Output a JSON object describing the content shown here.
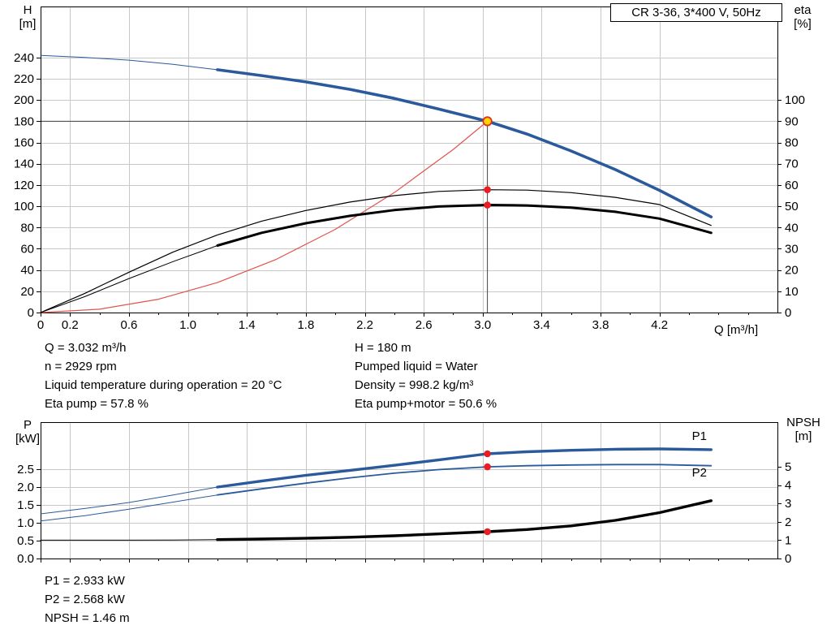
{
  "title_box": "CR 3-36, 3*400 V, 50Hz",
  "colors": {
    "curve_blue": "#2A5A9C",
    "curve_black": "#000000",
    "system_red": "#E0544C",
    "red_dot": "#EC1C24",
    "duty_fill": "#FFD400",
    "duty_ring": "#E03020",
    "grid": "#C8C8C8",
    "border": "#000000",
    "crosshair": "#404040",
    "background": "#FFFFFF"
  },
  "axes_text": {
    "top_left_title": "H",
    "top_left_unit": "[m]",
    "top_right_title": "eta",
    "top_right_unit": "[%]",
    "top_x_label": "Q [m³/h]",
    "bottom_left_title": "P",
    "bottom_left_unit": "[kW]",
    "bottom_right_title": "NPSH",
    "bottom_right_unit": "[m]"
  },
  "info": {
    "left": [
      "Q = 3.032 m³/h",
      "n = 2929 rpm",
      "Liquid temperature during operation = 20 °C",
      "Eta pump = 57.8 %"
    ],
    "right": [
      "H = 180 m",
      "Pumped liquid = Water",
      "Density = 998.2 kg/m³",
      "Eta pump+motor = 50.6 %"
    ],
    "bottom": [
      "P1 = 2.933 kW",
      "P2 = 2.568 kW",
      "NPSH = 1.46 m"
    ]
  },
  "chart_data": [
    {
      "type": "line",
      "name": "hq-eta-chart",
      "title": "CR 3-36, 3*400 V, 50Hz",
      "xlabel": "Q [m³/h]",
      "ylabel_left": "H [m]",
      "ylabel_right": "eta [%]",
      "xlim": [
        0,
        5.0
      ],
      "ylim_left": [
        0,
        288
      ],
      "ylim_right": [
        0,
        144
      ],
      "grid": true,
      "x_ticks": {
        "values": [
          0,
          0.2,
          0.6,
          1.0,
          1.4,
          1.8,
          2.2,
          2.6,
          3.0,
          3.4,
          3.8,
          4.2
        ],
        "labels": [
          "0",
          "0.2",
          "0.6",
          "1.0",
          "1.4",
          "1.8",
          "2.2",
          "2.6",
          "3.0",
          "3.4",
          "3.8",
          "4.2"
        ],
        "minor_step": 0.2,
        "show_labels": true
      },
      "y_ticks_left": {
        "values": [
          0,
          20,
          40,
          60,
          80,
          100,
          120,
          140,
          160,
          180,
          200,
          220,
          240
        ],
        "labels": [
          "0",
          "20",
          "40",
          "60",
          "80",
          "100",
          "120",
          "140",
          "160",
          "180",
          "200",
          "220",
          "240"
        ]
      },
      "y_ticks_right": {
        "values": [
          0,
          10,
          20,
          30,
          40,
          50,
          60,
          70,
          80,
          90,
          100
        ],
        "labels": [
          "0",
          "10",
          "20",
          "30",
          "40",
          "50",
          "60",
          "70",
          "80",
          "90",
          "100"
        ]
      },
      "duty_point": {
        "q": 3.032,
        "h": 180
      },
      "series": [
        {
          "name": "system-curve",
          "axis": "left",
          "color": "#E0544C",
          "width": 1.2,
          "x": [
            0,
            0.4,
            0.8,
            1.2,
            1.6,
            2.0,
            2.4,
            2.8,
            3.032
          ],
          "y": [
            0,
            3.1,
            12.5,
            28.2,
            50.1,
            78.3,
            112.8,
            153.5,
            180
          ]
        },
        {
          "name": "eta-pump",
          "axis": "right",
          "color": "#000000",
          "width": 1.2,
          "x": [
            0,
            0.3,
            0.6,
            0.9,
            1.2,
            1.5,
            1.8,
            2.1,
            2.4,
            2.7,
            3.032,
            3.3,
            3.6,
            3.9,
            4.2,
            4.55
          ],
          "y": [
            0,
            9,
            19,
            28.5,
            36.5,
            43,
            48,
            52,
            55,
            57,
            57.8,
            57.6,
            56.4,
            54.2,
            50.8,
            41
          ]
        },
        {
          "name": "eta-pump-motor",
          "axis": "right",
          "color": "#000000",
          "width": 3,
          "thin_width": 1,
          "bold_from": 1.2,
          "x": [
            0,
            0.3,
            0.6,
            0.9,
            1.2,
            1.5,
            1.8,
            2.1,
            2.4,
            2.7,
            3.032,
            3.3,
            3.6,
            3.9,
            4.2,
            4.55
          ],
          "y": [
            0,
            7.5,
            16,
            24,
            31.5,
            37.5,
            42,
            45.5,
            48.2,
            49.9,
            50.6,
            50.4,
            49.4,
            47.4,
            44.2,
            37.5
          ]
        },
        {
          "name": "head-curve",
          "axis": "left",
          "color": "#2A5A9C",
          "width": 3.6,
          "thin_width": 1,
          "bold_from": 1.2,
          "x": [
            0,
            0.3,
            0.6,
            0.9,
            1.2,
            1.5,
            1.8,
            2.1,
            2.4,
            2.7,
            3.032,
            3.3,
            3.6,
            3.9,
            4.2,
            4.55
          ],
          "y": [
            242,
            240,
            237.5,
            233.5,
            228.5,
            223,
            217,
            210,
            201.5,
            191.5,
            180,
            168,
            152,
            134.5,
            115,
            90
          ]
        }
      ],
      "markers": [
        {
          "q": 3.032,
          "value": 57.8,
          "axis": "right"
        },
        {
          "q": 3.032,
          "value": 50.6,
          "axis": "right"
        }
      ]
    },
    {
      "type": "line",
      "name": "power-npsh-chart",
      "title": "",
      "xlabel": "",
      "ylabel_left": "P [kW]",
      "ylabel_right": "NPSH [m]",
      "xlim": [
        0,
        5.0
      ],
      "ylim_left": [
        0,
        3.82
      ],
      "ylim_right": [
        0,
        7.43
      ],
      "grid": true,
      "x_ticks": {
        "values": [
          0,
          0.2,
          0.6,
          1.0,
          1.4,
          1.8,
          2.2,
          2.6,
          3.0,
          3.4,
          3.8,
          4.2
        ],
        "labels": [
          "0",
          "0.2",
          "0.6",
          "1.0",
          "1.4",
          "1.8",
          "2.2",
          "2.6",
          "3.0",
          "3.4",
          "3.8",
          "4.2"
        ],
        "minor_step": 0.2,
        "show_labels": false
      },
      "y_ticks_left": {
        "values": [
          0,
          0.5,
          1.0,
          1.5,
          2.0,
          2.5
        ],
        "labels": [
          "0.0",
          "0.5",
          "1.0",
          "1.5",
          "2.0",
          "2.5"
        ]
      },
      "y_ticks_right": {
        "values": [
          0,
          1,
          2,
          3,
          4,
          5
        ],
        "labels": [
          "0",
          "1",
          "2",
          "3",
          "4",
          "5"
        ]
      },
      "series": [
        {
          "name": "p2-power",
          "axis": "left",
          "color": "#2A5A9C",
          "width": 1.8,
          "thin_width": 1,
          "bold_from": 1.2,
          "x": [
            0,
            0.3,
            0.6,
            0.9,
            1.2,
            1.5,
            1.8,
            2.1,
            2.4,
            2.7,
            3.032,
            3.3,
            3.6,
            3.9,
            4.2,
            4.55
          ],
          "y": [
            1.05,
            1.2,
            1.38,
            1.58,
            1.78,
            1.95,
            2.11,
            2.26,
            2.39,
            2.49,
            2.568,
            2.6,
            2.62,
            2.63,
            2.63,
            2.6
          ]
        },
        {
          "name": "p1-power",
          "axis": "left",
          "color": "#2A5A9C",
          "width": 3.4,
          "thin_width": 1,
          "bold_from": 1.2,
          "x": [
            0,
            0.3,
            0.6,
            0.9,
            1.2,
            1.5,
            1.8,
            2.1,
            2.4,
            2.7,
            3.032,
            3.3,
            3.6,
            3.9,
            4.2,
            4.55
          ],
          "y": [
            1.25,
            1.4,
            1.57,
            1.78,
            2.0,
            2.17,
            2.33,
            2.47,
            2.61,
            2.76,
            2.933,
            2.99,
            3.03,
            3.06,
            3.07,
            3.05
          ]
        },
        {
          "name": "npsh-curve",
          "axis": "right",
          "color": "#000000",
          "width": 3.4,
          "thin_width": 1,
          "bold_from": 1.2,
          "x": [
            0,
            0.3,
            0.6,
            0.9,
            1.2,
            1.5,
            1.8,
            2.1,
            2.4,
            2.7,
            3.032,
            3.3,
            3.6,
            3.9,
            4.2,
            4.55
          ],
          "y": [
            1.0,
            1.0,
            1.0,
            1.01,
            1.03,
            1.06,
            1.1,
            1.16,
            1.24,
            1.34,
            1.46,
            1.58,
            1.78,
            2.08,
            2.5,
            3.15
          ]
        }
      ],
      "markers": [
        {
          "q": 3.032,
          "value": 2.933,
          "axis": "left"
        },
        {
          "q": 3.032,
          "value": 2.568,
          "axis": "left"
        },
        {
          "q": 3.032,
          "value": 1.46,
          "axis": "right"
        }
      ],
      "series_labels": [
        {
          "text": "P1",
          "q": 4.42,
          "value": 3.32
        },
        {
          "text": "P2",
          "q": 4.42,
          "value": 2.3
        }
      ]
    }
  ]
}
